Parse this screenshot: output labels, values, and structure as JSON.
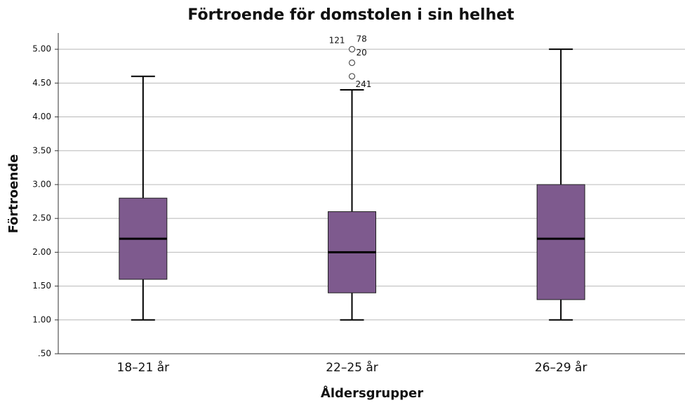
{
  "chart_data": {
    "type": "box",
    "title": "Förtroende för domstolen i sin helhet",
    "xlabel": "Åldersgrupper",
    "ylabel": "Förtroende",
    "categories": [
      "18–21 år",
      "22–25 år",
      "26–29 år"
    ],
    "color": "#7e5a8e",
    "boxes": [
      {
        "min": 1.0,
        "q1": 1.6,
        "median": 2.2,
        "q3": 2.8,
        "max": 4.6,
        "outliers": [],
        "outlier_labels": []
      },
      {
        "min": 1.0,
        "q1": 1.4,
        "median": 2.0,
        "q3": 2.6,
        "max": 4.4,
        "outliers": [
          5.0,
          4.8,
          4.6
        ],
        "outlier_labels": [
          [
            "121",
            "78"
          ],
          [
            "20"
          ],
          [
            "241"
          ]
        ]
      },
      {
        "min": 1.0,
        "q1": 1.3,
        "median": 2.2,
        "q3": 3.0,
        "max": 5.0,
        "outliers": [],
        "outlier_labels": []
      }
    ],
    "ylim": [
      0.5,
      5.24
    ],
    "yticks": [
      {
        "value": 0.5,
        "label": ".50"
      },
      {
        "value": 1.0,
        "label": "1.00"
      },
      {
        "value": 1.5,
        "label": "1.50"
      },
      {
        "value": 2.0,
        "label": "2.00"
      },
      {
        "value": 2.5,
        "label": "2.50"
      },
      {
        "value": 3.0,
        "label": "3.00"
      },
      {
        "value": 3.5,
        "label": "3.50"
      },
      {
        "value": 4.0,
        "label": "4.00"
      },
      {
        "value": 4.5,
        "label": "4.50"
      },
      {
        "value": 5.0,
        "label": "5.00"
      }
    ],
    "grid": true
  }
}
